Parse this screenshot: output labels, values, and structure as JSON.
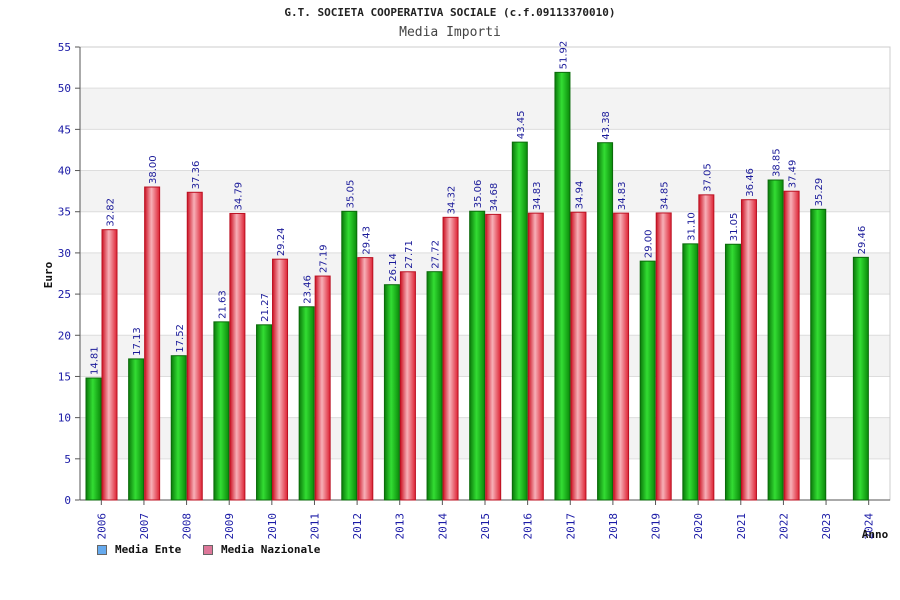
{
  "chart_data": {
    "type": "bar",
    "title": "G.T. SOCIETA COOPERATIVA SOCIALE (c.f.09113370010)",
    "subtitle": "Media Importi",
    "xlabel": "Anno",
    "ylabel": "Euro",
    "ylim": [
      0,
      55
    ],
    "yticks": [
      "0",
      "5",
      "10",
      "15",
      "20",
      "25",
      "30",
      "35",
      "40",
      "45",
      "50",
      "55"
    ],
    "grid": true,
    "legend_position": "bottom-left",
    "categories": [
      "2006",
      "2007",
      "2008",
      "2009",
      "2010",
      "2011",
      "2012",
      "2013",
      "2014",
      "2015",
      "2016",
      "2017",
      "2018",
      "2019",
      "2020",
      "2021",
      "2022",
      "2023",
      "2024"
    ],
    "series": [
      {
        "name": "Media Ente",
        "color": "#22bb22",
        "legend_color": "#66aaee",
        "values": [
          14.81,
          17.13,
          17.52,
          21.63,
          21.27,
          23.46,
          35.05,
          26.14,
          27.72,
          35.06,
          43.45,
          51.92,
          43.38,
          29.0,
          31.1,
          31.05,
          38.85,
          35.29,
          29.46
        ],
        "labels": [
          "14.81",
          "17.13",
          "17.52",
          "21.63",
          "21.27",
          "23.46",
          "35.05",
          "26.14",
          "27.72",
          "35.06",
          "43.45",
          "51.92",
          "43.38",
          "29.00",
          "31.10",
          "31.05",
          "38.85",
          "35.29",
          "29.46"
        ]
      },
      {
        "name": "Media Nazionale",
        "color": "#ee3344",
        "legend_color": "#dd7799",
        "values": [
          32.82,
          38.0,
          37.36,
          34.79,
          29.24,
          27.19,
          29.43,
          27.71,
          34.32,
          34.68,
          34.83,
          34.94,
          34.83,
          34.85,
          37.05,
          36.46,
          37.49,
          null,
          null
        ],
        "labels": [
          "32.82",
          "38.00",
          "37.36",
          "34.79",
          "29.24",
          "27.19",
          "29.43",
          "27.71",
          "34.32",
          "34.68",
          "34.83",
          "34.94",
          "34.83",
          "34.85",
          "37.05",
          "36.46",
          "37.49",
          "",
          ""
        ]
      }
    ]
  }
}
